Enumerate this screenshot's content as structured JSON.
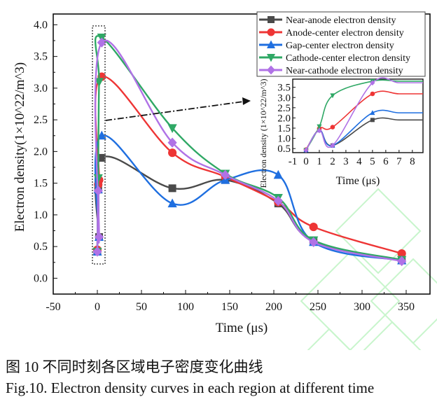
{
  "chart_data": {
    "type": "line",
    "xlabel": "Time (μs)",
    "ylabel": "Electron density(1×10^22/m^3)",
    "xlim": [
      -50,
      377
    ],
    "ylim": [
      -0.25,
      4.17
    ],
    "xticks": [
      -50,
      0,
      50,
      100,
      150,
      200,
      250,
      300,
      350
    ],
    "yticks": [
      0.0,
      0.5,
      1.0,
      1.5,
      2.0,
      2.5,
      3.0,
      3.5,
      4.0
    ],
    "grid": false,
    "legend_position": "top-right",
    "x": [
      0,
      1,
      2,
      5,
      85,
      145,
      205,
      245,
      345
    ],
    "series": [
      {
        "name": "Near-anode electron density",
        "color": "#4a4a4a",
        "marker": "square",
        "values": [
          0.42,
          1.4,
          0.65,
          1.9,
          1.42,
          1.55,
          1.18,
          0.58,
          0.28
        ]
      },
      {
        "name": "Anode-center electron density",
        "color": "#ee3535",
        "marker": "circle",
        "values": [
          0.45,
          1.48,
          1.55,
          3.18,
          1.98,
          1.6,
          1.2,
          0.81,
          0.39
        ]
      },
      {
        "name": "Gap-center electron density",
        "color": "#1f6fe0",
        "marker": "triangle-up",
        "values": [
          0.42,
          1.4,
          0.65,
          2.25,
          1.18,
          1.55,
          1.63,
          0.57,
          0.28
        ]
      },
      {
        "name": "Cathode-center electron density",
        "color": "#2fa865",
        "marker": "triangle-down",
        "values": [
          0.42,
          1.58,
          3.1,
          3.8,
          2.37,
          1.65,
          1.27,
          0.6,
          0.29
        ]
      },
      {
        "name": "Near-cathode electron density",
        "color": "#b072e6",
        "marker": "diamond",
        "values": [
          0.42,
          1.38,
          0.65,
          3.72,
          2.14,
          1.63,
          1.22,
          0.57,
          0.27
        ]
      }
    ],
    "inset": {
      "xlabel": "Time (μs)",
      "ylabel": "Electron density (1×10^22/m^3)",
      "xlim": [
        -1,
        8.8
      ],
      "ylim": [
        0.3,
        3.9
      ],
      "xticks": [
        -1,
        0,
        1,
        2,
        3,
        4,
        5,
        6,
        7,
        8
      ],
      "yticks": [
        0.5,
        1.0,
        1.5,
        2.0,
        2.5,
        3.0,
        3.5
      ],
      "x": [
        0,
        1,
        2,
        5
      ]
    }
  },
  "caption": {
    "zh": "图 10 不同时刻各区域电子密度变化曲线",
    "en": "Fig.10. Electron density curves in each region at different time"
  }
}
